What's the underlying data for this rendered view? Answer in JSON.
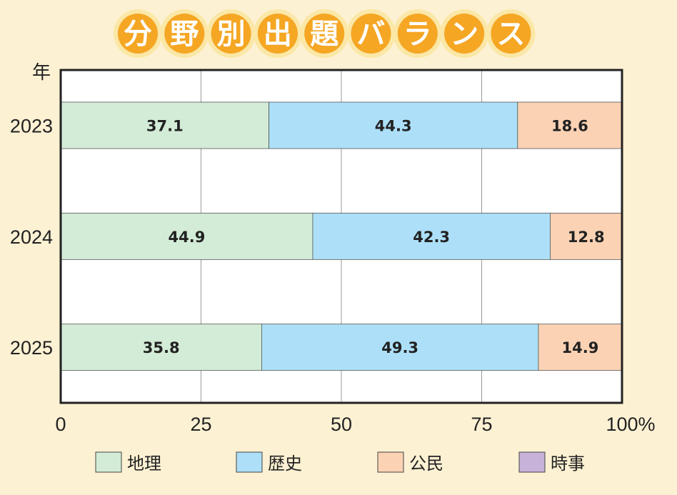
{
  "title": "分野別出題バランス",
  "colors": {
    "title_circle": "#f5a623",
    "title_glow": "#fbe7a6",
    "background": "#fdf1d3",
    "grid": "#9a9a9a",
    "frame": "#222222"
  },
  "chart_data": {
    "type": "bar",
    "orientation": "horizontal",
    "stacked": true,
    "ylabel": "年",
    "xtick_suffix": "%",
    "xlim": [
      0,
      100
    ],
    "xticks": [
      0,
      25,
      50,
      75,
      100
    ],
    "categories": [
      "2023",
      "2024",
      "2025"
    ],
    "series": [
      {
        "name": "地理",
        "color": "#d3ecd7",
        "values": [
          37.1,
          44.9,
          35.8
        ]
      },
      {
        "name": "歴史",
        "color": "#ade0f8",
        "values": [
          44.3,
          42.3,
          49.3
        ]
      },
      {
        "name": "公民",
        "color": "#fbd2b4",
        "values": [
          18.6,
          12.8,
          14.9
        ]
      },
      {
        "name": "時事",
        "color": "#c7b3da",
        "values": [
          0,
          0,
          0
        ]
      }
    ],
    "grid": true,
    "legend_position": "bottom"
  }
}
